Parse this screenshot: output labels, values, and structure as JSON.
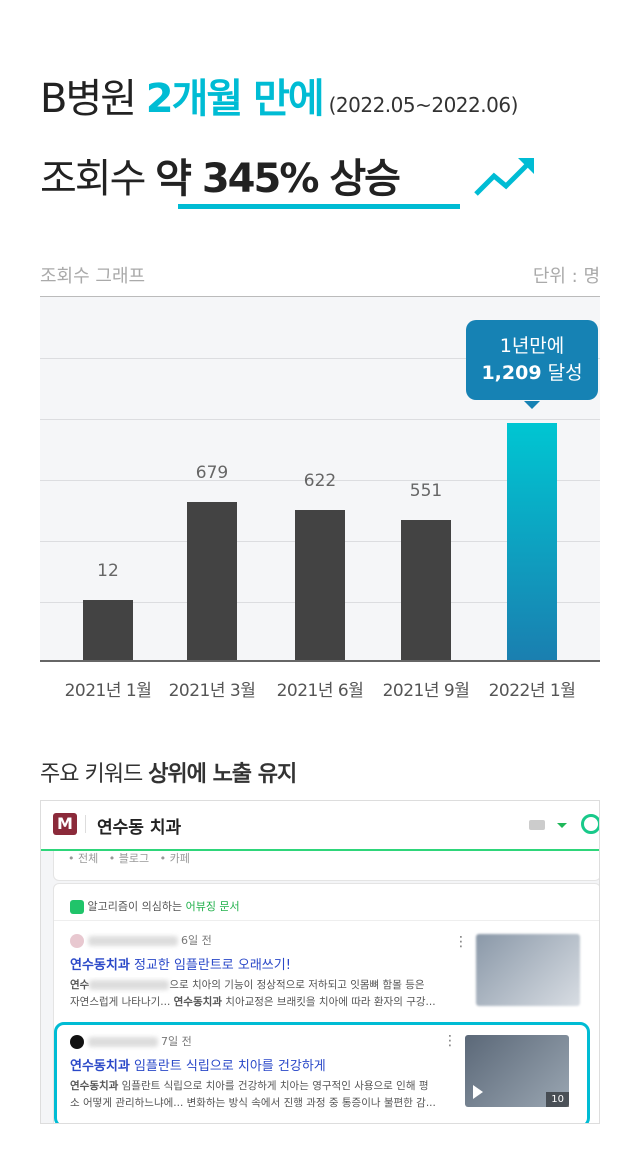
{
  "headline": {
    "line1_a": "B병원 ",
    "line1_accent": "2개월 만에",
    "line1_period": " (2022.05~2022.06)",
    "line2_a": "조회수 ",
    "line2_bold": "약 345% 상승",
    "trend_icon": "trending-up-icon",
    "accent_color": "#00bcd4"
  },
  "chart_header": {
    "title": "조회수 그래프",
    "unit": "단위 : 명"
  },
  "chart_data": {
    "type": "bar",
    "categories": [
      "2021년 1월",
      "2021년 3월",
      "2021년 6월",
      "2021년 9월",
      "2022년 1월"
    ],
    "values": [
      12,
      679,
      622,
      551,
      1209
    ],
    "grid": true,
    "highlight_index": 4,
    "bar_color": "#434343",
    "highlight_color": "#00c6d2"
  },
  "tooltip": {
    "line1": "1년만에",
    "value": "1,209",
    "suffix": " 달성"
  },
  "section_title": {
    "normal": "주요 키워드 ",
    "bold": "상위에 노출 유지"
  },
  "search": {
    "query": "연수동 치과",
    "filters": [
      "전체",
      "블로그",
      "카페"
    ],
    "view_label": "알고리즘이 의심하는 ",
    "view_accent": "어뷰징 문서"
  },
  "results": [
    {
      "time": "6일 전",
      "title_kw": "연수동치과",
      "title_rest": " 정교한 임플란트로 오래쓰기!",
      "snippet1_kw": "연수",
      "snippet1": "으로 치아의 기능이 정상적으로 저하되고 잇몸뼈 함몰 등은",
      "snippet2": "자연스럽게 나타나기... ",
      "snippet2_kw": "연수동치과",
      "snippet2_rest": " 치아교정은 브래킷을 치아에 따라 환자의 구강..."
    },
    {
      "time": "7일 전",
      "title_kw": "연수동치과",
      "title_rest": " 임플란트 식립으로 치아를 건강하게",
      "snippet1_kw": "연수동치과",
      "snippet1": " 임플란트 식립으로 치아를 건강하게 치아는 영구적인 사용으로 인해 평",
      "snippet2": "소 어떻게 관리하느냐에... 변화하는 방식 속에서 진행 과정 중 통증이나 불편한 감...",
      "thumb_count": "10"
    }
  ]
}
